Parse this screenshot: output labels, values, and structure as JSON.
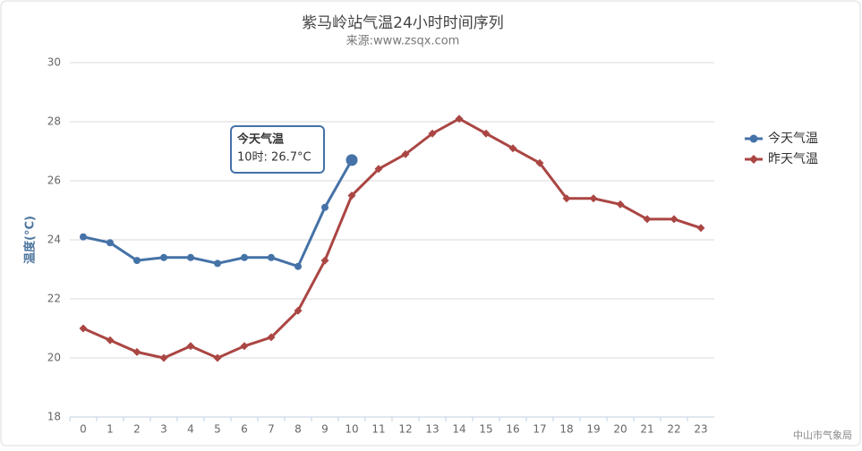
{
  "chart_data": {
    "type": "line",
    "title": "紫马岭站气温24小时时间序列",
    "subtitle": "来源:www.zsqx.com",
    "y_label": "温度(°C)",
    "credit": "中山市气象局",
    "categories": [
      "0",
      "1",
      "2",
      "3",
      "4",
      "5",
      "6",
      "7",
      "8",
      "9",
      "10",
      "11",
      "12",
      "13",
      "14",
      "15",
      "16",
      "17",
      "18",
      "19",
      "20",
      "21",
      "22",
      "23"
    ],
    "series": [
      {
        "name": "今天气温",
        "color": "#4572a7",
        "marker": "circle",
        "values": [
          24.1,
          23.9,
          23.3,
          23.4,
          23.4,
          23.2,
          23.4,
          23.4,
          23.1,
          25.1,
          26.7,
          null,
          null,
          null,
          null,
          null,
          null,
          null,
          null,
          null,
          null,
          null,
          null,
          null
        ]
      },
      {
        "name": "昨天气温",
        "color": "#aa4643",
        "marker": "diamond",
        "values": [
          21.0,
          20.6,
          20.2,
          20.0,
          20.4,
          20.0,
          20.4,
          20.7,
          21.6,
          23.3,
          25.5,
          26.4,
          26.9,
          27.6,
          28.1,
          27.6,
          27.1,
          26.6,
          25.4,
          25.4,
          25.2,
          24.7,
          24.7,
          24.4
        ]
      }
    ],
    "tooltip": {
      "title": "今天气温",
      "label": "10时: 26.7°C"
    },
    "ylim": [
      18,
      30
    ],
    "yticks": [
      18,
      20,
      22,
      24,
      26,
      28,
      30
    ],
    "grid": true,
    "legend": "right"
  }
}
